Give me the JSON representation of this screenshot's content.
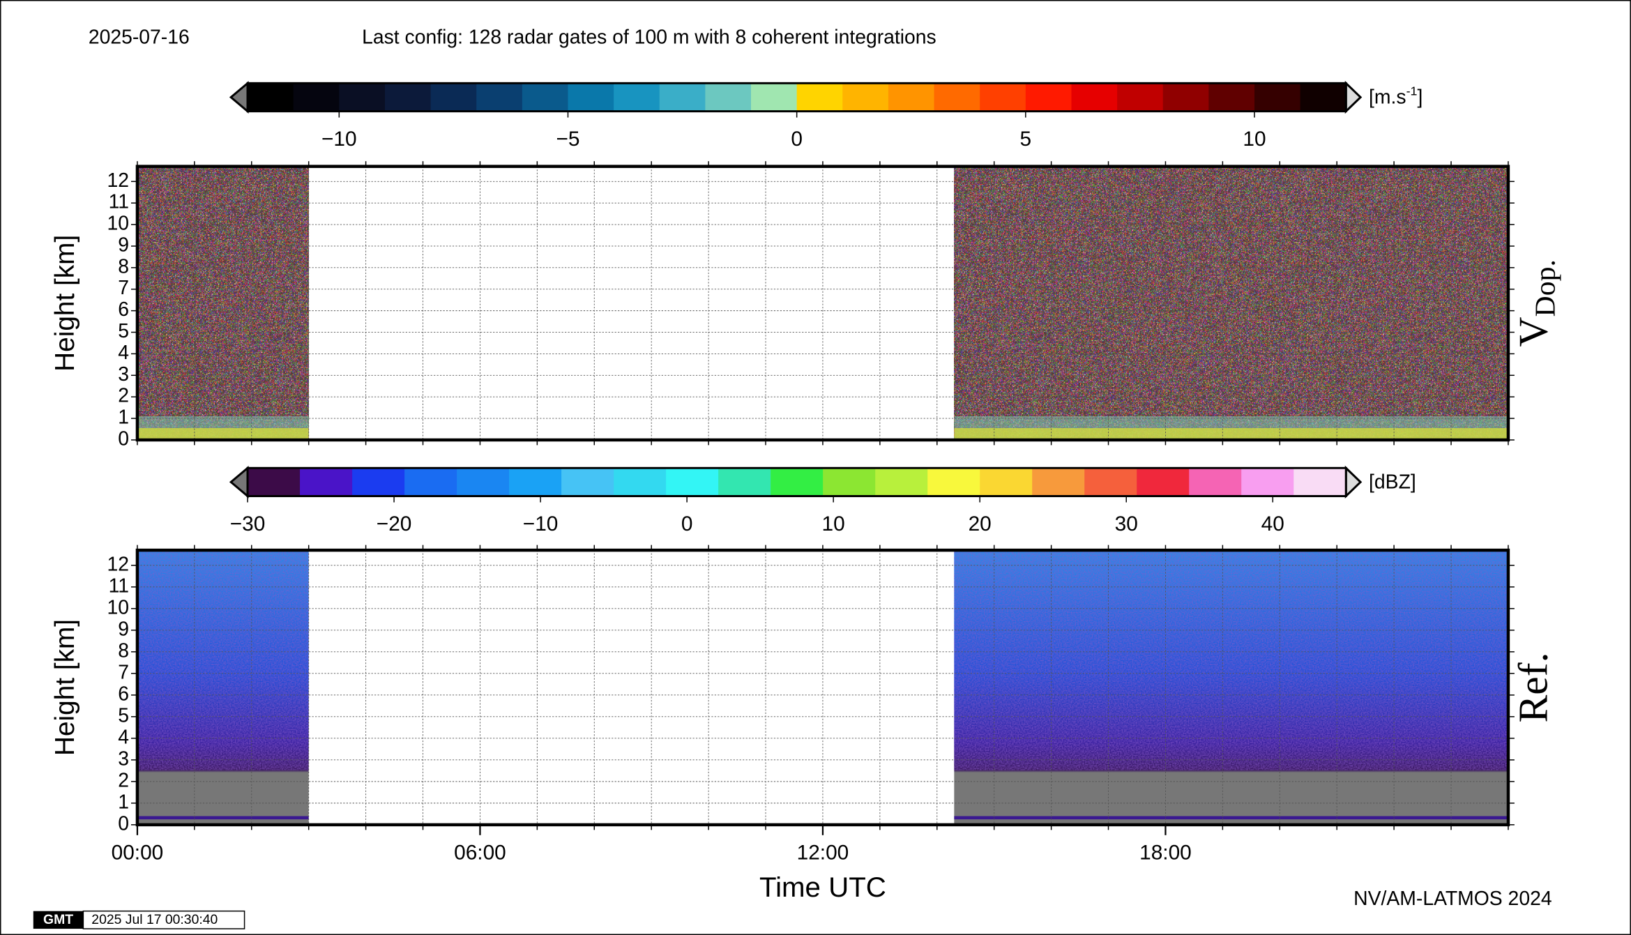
{
  "header": {
    "date": "2025-07-16",
    "config": "Last config: 128 radar gates of 100 m with 8 coherent integrations"
  },
  "footer": {
    "credit": "NV/AM-LATMOS 2024",
    "logo": "GMT",
    "timestamp": "2025 Jul 17 00:30:40"
  },
  "chart_data": [
    {
      "type": "heatmap",
      "ylabel": "Height [km]",
      "panel_label": "V",
      "panel_label_sub": "Dop.",
      "xlim": [
        0,
        24
      ],
      "xgrid": [
        0,
        1,
        2,
        3,
        4,
        5,
        6,
        7,
        8,
        9,
        10,
        11,
        12,
        13,
        14,
        15,
        16,
        17,
        18,
        19,
        20,
        21,
        22,
        23,
        24
      ],
      "ylim": [
        0,
        12.7
      ],
      "yticks": [
        0,
        1,
        2,
        3,
        4,
        5,
        6,
        7,
        8,
        9,
        10,
        11,
        12
      ],
      "grid": true,
      "data_periods": [
        [
          0,
          3
        ],
        [
          14.3,
          24
        ]
      ],
      "colorbar": {
        "unit": "[m.s",
        "unit_sup": "-1",
        "unit_end": "]",
        "lim": [
          -12,
          12
        ],
        "ticks": [
          {
            "value": -10,
            "label": "−10"
          },
          {
            "value": -5,
            "label": "−5"
          },
          0,
          5,
          10
        ],
        "colors": [
          "#000000",
          "#05050f",
          "#0a0f24",
          "#0c1a3a",
          "#0a2a55",
          "#0a3f70",
          "#0a5a8c",
          "#0a78aa",
          "#1894c0",
          "#3aaec8",
          "#6cc8c0",
          "#a0e6b0",
          "#ffd400",
          "#ffb400",
          "#ff9400",
          "#ff6a00",
          "#ff4000",
          "#ff1a00",
          "#e60000",
          "#c00000",
          "#900000",
          "#600000",
          "#350000",
          "#100000"
        ]
      }
    },
    {
      "type": "heatmap",
      "ylabel": "Height [km]",
      "panel_label": "Ref.",
      "xlabel": "Time UTC",
      "xlim": [
        0,
        24
      ],
      "xgrid": [
        0,
        1,
        2,
        3,
        4,
        5,
        6,
        7,
        8,
        9,
        10,
        11,
        12,
        13,
        14,
        15,
        16,
        17,
        18,
        19,
        20,
        21,
        22,
        23,
        24
      ],
      "xticks": [
        {
          "value": 0,
          "label": "00:00"
        },
        {
          "value": 6,
          "label": "06:00"
        },
        {
          "value": 12,
          "label": "12:00"
        },
        {
          "value": 18,
          "label": "18:00"
        }
      ],
      "ylim": [
        0,
        12.7
      ],
      "yticks": [
        0,
        1,
        2,
        3,
        4,
        5,
        6,
        7,
        8,
        9,
        10,
        11,
        12
      ],
      "grid": true,
      "data_periods": [
        [
          0,
          3
        ],
        [
          14.3,
          24
        ]
      ],
      "colorbar": {
        "unit": "[dBZ]",
        "lim": [
          -30,
          45
        ],
        "ticks": [
          {
            "value": -30,
            "label": "−30"
          },
          {
            "value": -20,
            "label": "−20"
          },
          {
            "value": -10,
            "label": "−10"
          },
          0,
          10,
          20,
          30,
          40
        ],
        "colors": [
          "#3c0b48",
          "#4a14c8",
          "#1b3cf0",
          "#1a6cf2",
          "#1a86f2",
          "#1aa2f5",
          "#46c3f5",
          "#33d9f0",
          "#33f5f5",
          "#33e6b0",
          "#33ee44",
          "#8ce632",
          "#b8f03c",
          "#f8f83c",
          "#fad732",
          "#f79a3c",
          "#f5603c",
          "#f0283c",
          "#f564b4",
          "#f89ef0",
          "#f9dcf5"
        ]
      }
    }
  ]
}
